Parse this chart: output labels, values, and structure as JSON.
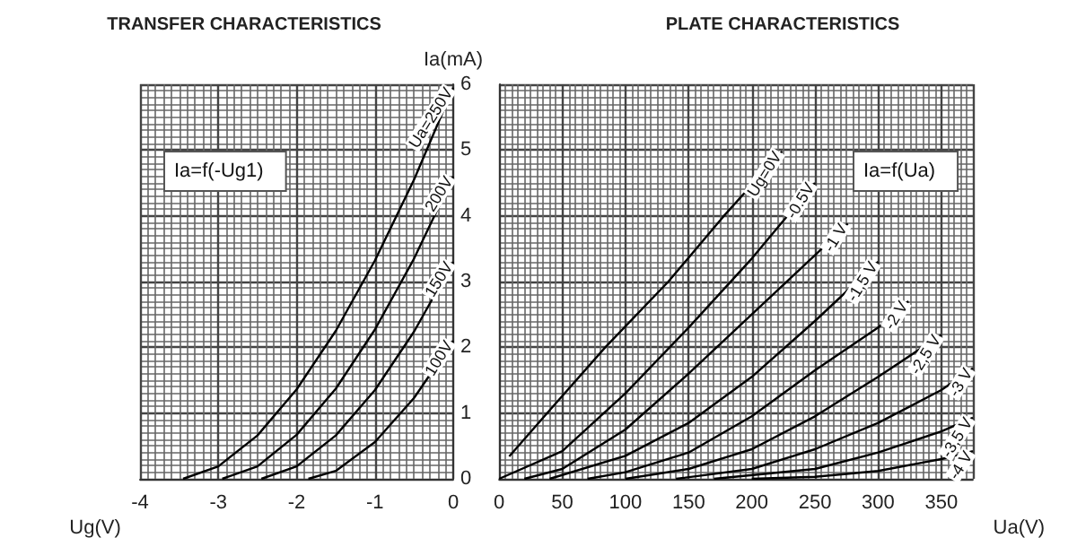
{
  "chart_data": [
    {
      "type": "line",
      "title": "TRANSFER CHARACTERISTICS",
      "xlabel": "Ug(V)",
      "ylabel": "Ia(mA)",
      "annotations": [
        "Ia=f(-Ug1)"
      ],
      "xlim": [
        -4,
        0
      ],
      "xticks": [
        -4,
        -3,
        -2,
        -1,
        0
      ],
      "ylim": [
        0,
        6
      ],
      "yticks": [
        0,
        1,
        2,
        3,
        4,
        5,
        6
      ],
      "grid": true,
      "legend": false,
      "series": [
        {
          "name": "Ua=250V",
          "color": "#000000",
          "x": [
            -3.45,
            -3,
            -2.5,
            -2,
            -1.5,
            -1,
            -0.5,
            0
          ],
          "values": [
            0,
            0.19,
            0.66,
            1.36,
            2.25,
            3.32,
            4.55,
            5.95
          ]
        },
        {
          "name": "200V",
          "color": "#000000",
          "x": [
            -2.95,
            -2.5,
            -2,
            -1.5,
            -1,
            -0.5,
            0
          ],
          "values": [
            0,
            0.19,
            0.67,
            1.37,
            2.27,
            3.35,
            4.6
          ]
        },
        {
          "name": "150V",
          "color": "#000000",
          "x": [
            -2.45,
            -2,
            -1.5,
            -1,
            -0.5,
            0
          ],
          "values": [
            0,
            0.19,
            0.66,
            1.35,
            2.24,
            3.3
          ]
        },
        {
          "name": "100V",
          "color": "#000000",
          "x": [
            -1.85,
            -1.5,
            -1,
            -0.5,
            0
          ],
          "values": [
            0,
            0.12,
            0.56,
            1.23,
            2.1
          ]
        }
      ]
    },
    {
      "type": "line",
      "title": "PLATE CHARACTERISTICS",
      "xlabel": "Ua(V)",
      "annotations": [
        "Ia=f(Ua)"
      ],
      "xlim": [
        0,
        375
      ],
      "xticks": [
        0,
        50,
        100,
        150,
        200,
        250,
        300,
        350
      ],
      "ylim": [
        0,
        6
      ],
      "yticks": [
        0,
        1,
        2,
        3,
        4,
        5,
        6
      ],
      "tick_labels": "x",
      "grid": true,
      "legend": false,
      "series": [
        {
          "name": "Ug=0V",
          "color": "#000000",
          "x": [
            8,
            38,
            84,
            134,
            178,
            224
          ],
          "values": [
            0.34,
            1,
            2,
            3,
            4,
            4.98
          ]
        },
        {
          "name": "-0.5V",
          "color": "#000000",
          "x": [
            0,
            50,
            100,
            150,
            200,
            250
          ],
          "values": [
            0,
            0.42,
            1.3,
            2.3,
            3.35,
            4.5
          ]
        },
        {
          "name": "-1 V",
          "color": "#000000",
          "x": [
            20,
            50,
            100,
            150,
            200,
            250,
            276
          ],
          "values": [
            0,
            0.15,
            0.75,
            1.6,
            2.5,
            3.4,
            3.88
          ]
        },
        {
          "name": "-1,5 V",
          "color": "#000000",
          "x": [
            40,
            100,
            150,
            200,
            250,
            300
          ],
          "values": [
            0,
            0.35,
            0.85,
            1.55,
            2.4,
            3.3
          ]
        },
        {
          "name": "-2 V",
          "color": "#000000",
          "x": [
            70,
            100,
            150,
            200,
            250,
            300,
            324
          ],
          "values": [
            0,
            0.1,
            0.4,
            0.95,
            1.65,
            2.3,
            2.7
          ]
        },
        {
          "name": "-2,5 V",
          "color": "#000000",
          "x": [
            100,
            150,
            200,
            250,
            300,
            350
          ],
          "values": [
            0,
            0.15,
            0.45,
            0.95,
            1.55,
            2.19
          ]
        },
        {
          "name": "-3 V",
          "color": "#000000",
          "x": [
            140,
            200,
            250,
            300,
            350,
            375
          ],
          "values": [
            0,
            0.15,
            0.45,
            0.85,
            1.35,
            1.68
          ]
        },
        {
          "name": "-3,5 V",
          "color": "#000000",
          "x": [
            170,
            250,
            300,
            350,
            375
          ],
          "values": [
            0,
            0.15,
            0.4,
            0.72,
            0.93
          ]
        },
        {
          "name": "-4 V",
          "color": "#000000",
          "x": [
            200,
            250,
            300,
            350,
            375
          ],
          "values": [
            0,
            0.03,
            0.12,
            0.3,
            0.42
          ]
        }
      ]
    }
  ]
}
